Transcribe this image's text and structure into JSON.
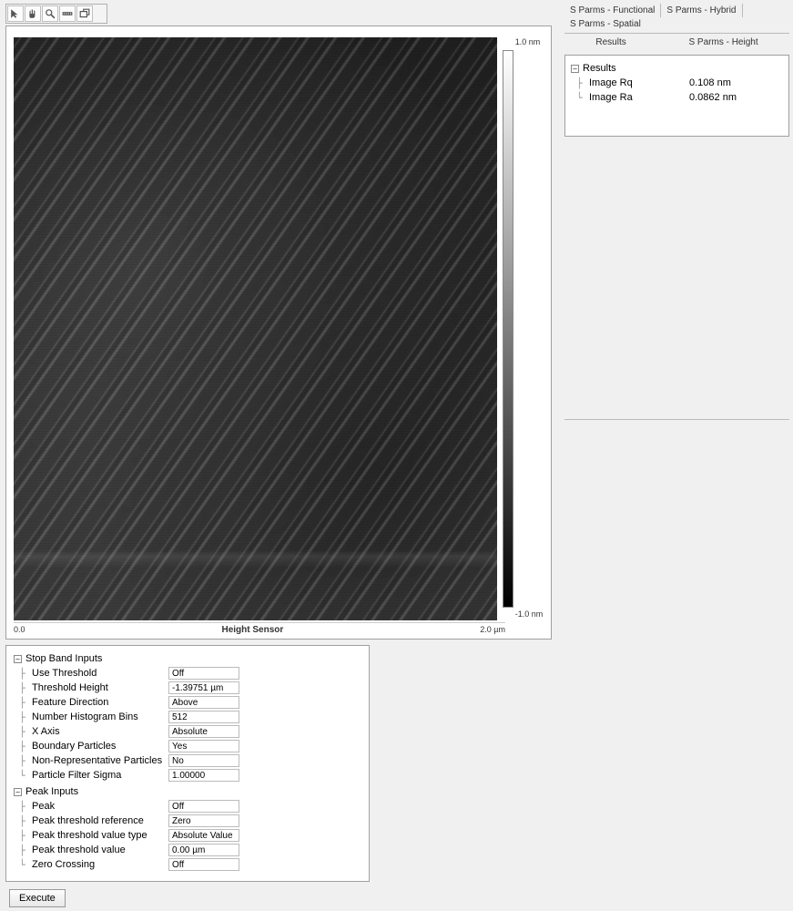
{
  "toolbar": {
    "icons": [
      "pointer",
      "hand",
      "zoom",
      "measure",
      "export"
    ]
  },
  "image": {
    "xaxis_min": "0.0",
    "xaxis_max": "2.0 µm",
    "xaxis_title": "Height Sensor",
    "colorbar_max": "1.0 nm",
    "colorbar_min": "-1.0 nm",
    "colorbar_gradient_top": "#ffffff",
    "colorbar_gradient_bottom": "#000000"
  },
  "inputs": {
    "group1_title": "Stop Band Inputs",
    "group1": [
      {
        "label": "Use Threshold",
        "value": "Off"
      },
      {
        "label": "Threshold Height",
        "value": "-1.39751 µm"
      },
      {
        "label": "Feature Direction",
        "value": "Above"
      },
      {
        "label": "Number Histogram Bins",
        "value": "512"
      },
      {
        "label": "X Axis",
        "value": "Absolute"
      },
      {
        "label": "Boundary Particles",
        "value": "Yes"
      },
      {
        "label": "Non-Representative Particles",
        "value": "No"
      },
      {
        "label": "Particle Filter Sigma",
        "value": "1.00000"
      }
    ],
    "group2_title": "Peak Inputs",
    "group2": [
      {
        "label": "Peak",
        "value": "Off"
      },
      {
        "label": "Peak threshold reference",
        "value": "Zero"
      },
      {
        "label": "Peak threshold value type",
        "value": "Absolute Value"
      },
      {
        "label": "Peak threshold value",
        "value": "0.00 µm"
      },
      {
        "label": "Zero Crossing",
        "value": "Off"
      }
    ]
  },
  "execute_label": "Execute",
  "tabs": {
    "row1": [
      "S Parms - Functional",
      "S Parms - Hybrid",
      "S Parms - Spatial"
    ],
    "row2_left": "Results",
    "row2_right": "S Parms - Height"
  },
  "results": {
    "header": "Results",
    "rows": [
      {
        "label": "Image Rq",
        "value": "0.108 nm"
      },
      {
        "label": "Image Ra",
        "value": "0.0862 nm"
      }
    ]
  }
}
